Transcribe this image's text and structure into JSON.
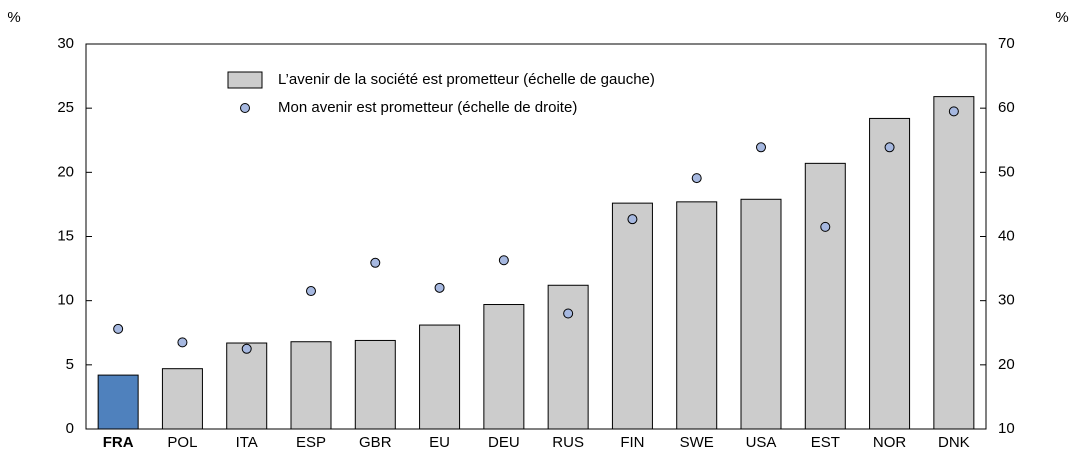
{
  "chart_data": {
    "type": "bar",
    "ylabel": "%",
    "y2label": "%",
    "categories": [
      "FRA",
      "POL",
      "ITA",
      "ESP",
      "GBR",
      "EU",
      "DEU",
      "RUS",
      "FIN",
      "SWE",
      "USA",
      "EST",
      "NOR",
      "DNK"
    ],
    "highlight_index": 0,
    "highlight_color": "#4f81bd",
    "series": [
      {
        "name": "L’avenir de la société est prometteur (échelle de gauche)",
        "type": "bar",
        "color": "#cccccc",
        "values": [
          4.2,
          4.7,
          6.7,
          6.8,
          6.9,
          8.1,
          9.7,
          11.2,
          17.6,
          17.7,
          17.9,
          20.7,
          24.2,
          25.9
        ]
      },
      {
        "name": "Mon avenir est prometteur (échelle de droite)",
        "type": "scatter",
        "axis": "y2",
        "color": "#a6b8e0",
        "values": [
          25.6,
          23.5,
          22.5,
          31.5,
          35.9,
          32,
          36.3,
          28,
          42.7,
          49.1,
          53.9,
          41.5,
          53.9,
          59.5
        ]
      }
    ],
    "ylim": [
      0,
      30
    ],
    "yticks": [
      0,
      5,
      10,
      15,
      20,
      25,
      30
    ],
    "y2lim": [
      10,
      70
    ],
    "y2ticks": [
      10,
      20,
      30,
      40,
      50,
      60,
      70
    ],
    "legend": "top-left"
  }
}
